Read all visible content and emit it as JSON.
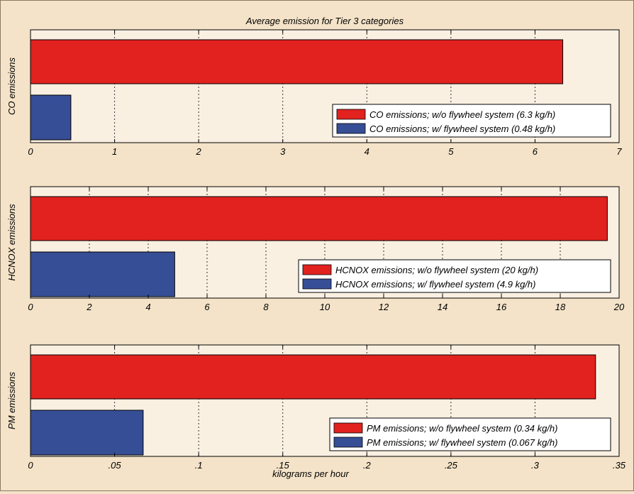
{
  "figure": {
    "title": "Average emission for Tier 3 categories",
    "xlabel": "kilograms per hour"
  },
  "colors": {
    "figure_bg": "#f4e3c8",
    "axes_bg": "#faf0e2",
    "without_flywheel": "#e1221f",
    "with_flywheel": "#364e95"
  },
  "chart_data": [
    {
      "type": "bar",
      "orientation": "horizontal",
      "ylabel": "CO emissions",
      "xlim": [
        0,
        7
      ],
      "xticks": [
        0,
        1,
        2,
        3,
        4,
        5,
        6,
        7
      ],
      "grid": true,
      "legend_position": "bottom-right",
      "series": [
        {
          "name": "CO emissions; w/o flywheel system (6.3 kg/h)",
          "value": 6.33
        },
        {
          "name": "CO emissions; w/ flywheel system (0.48 kg/h)",
          "value": 0.48
        }
      ]
    },
    {
      "type": "bar",
      "orientation": "horizontal",
      "ylabel": "HCNOX emissions",
      "xlim": [
        0,
        20
      ],
      "xticks": [
        0,
        2,
        4,
        6,
        8,
        10,
        12,
        14,
        16,
        18,
        20
      ],
      "grid": true,
      "legend_position": "bottom-right",
      "series": [
        {
          "name": "HCNOX emissions; w/o flywheel system (20 kg/h)",
          "value": 19.6
        },
        {
          "name": "HCNOX emissions; w/ flywheel system (4.9 kg/h)",
          "value": 4.9
        }
      ]
    },
    {
      "type": "bar",
      "orientation": "horizontal",
      "ylabel": "PM emissions",
      "xlim": [
        0,
        0.35
      ],
      "xticks": [
        0,
        0.05,
        0.1,
        0.15,
        0.2,
        0.25,
        0.3,
        0.35
      ],
      "grid": true,
      "legend_position": "bottom-right",
      "series": [
        {
          "name": "PM emissions; w/o flywheel system (0.34 kg/h)",
          "value": 0.336
        },
        {
          "name": "PM emissions; w/ flywheel system (0.067 kg/h)",
          "value": 0.067
        }
      ]
    }
  ]
}
